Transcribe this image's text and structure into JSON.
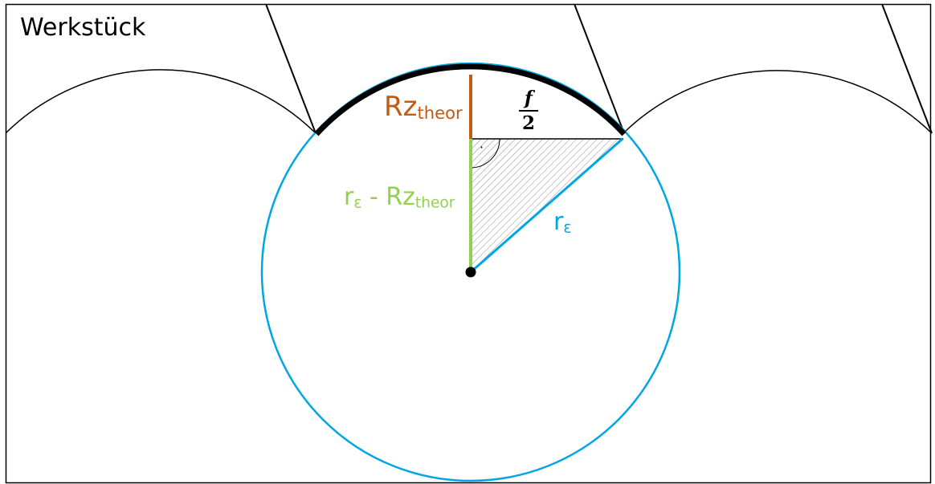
{
  "labels": {
    "workpiece": "Werkstück",
    "rz_main": "Rz",
    "rz_sub": "theor",
    "diff_r": "r",
    "diff_r_sub": "ε",
    "diff_mid": " - Rz",
    "diff_sub": "theor",
    "radius": "r",
    "radius_sub": "ε",
    "frac_num": "f",
    "frac_den": "2",
    "right_angle_dot": "·"
  },
  "colors": {
    "outline": "#000000",
    "tool_circle": "#00a6e4",
    "rz_line": "#c55a11",
    "difference_line": "#92d050",
    "hatch": "#8c8c8c"
  }
}
